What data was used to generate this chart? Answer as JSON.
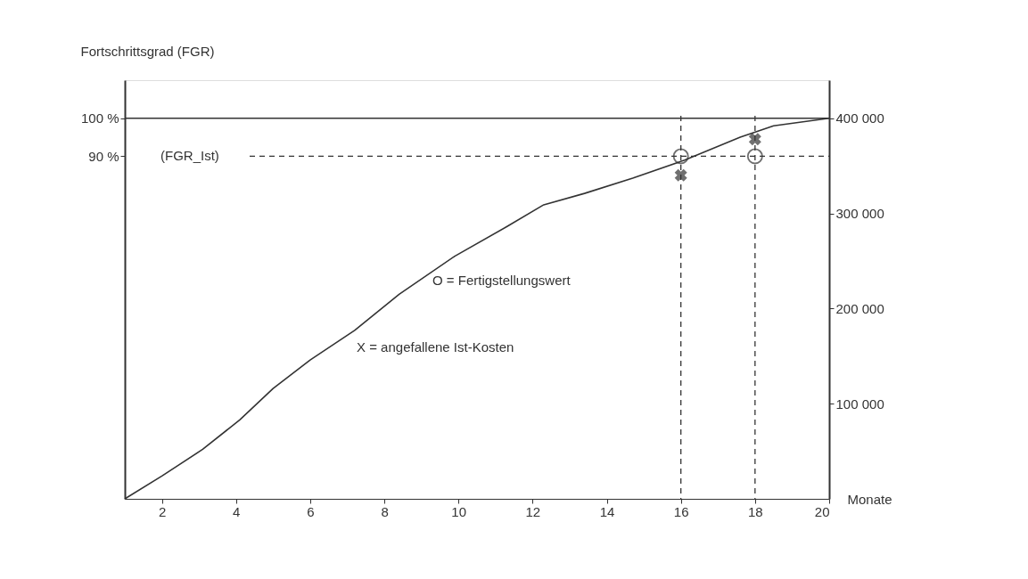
{
  "chart_data": {
    "type": "line",
    "xlabel": "Monate",
    "ylabel": "Fortschrittsgrad (FGR)",
    "xlim": [
      1,
      20
    ],
    "xticks": [
      2,
      4,
      6,
      8,
      10,
      12,
      14,
      16,
      18,
      20
    ],
    "ylim": [
      0,
      110
    ],
    "yticks": [
      {
        "value": 90,
        "label": "90 %"
      },
      {
        "value": 100,
        "label": "100 %"
      }
    ],
    "y2lim": [
      0,
      440000
    ],
    "y2ticks": [
      {
        "value": 100000,
        "label": "100 000"
      },
      {
        "value": 200000,
        "label": "200 000"
      },
      {
        "value": 300000,
        "label": "300 000"
      },
      {
        "value": 400000,
        "label": "400 000"
      }
    ],
    "grid": false,
    "series": [
      {
        "axis": "y2",
        "color": "#333333",
        "marker": "none",
        "line_style": "solid",
        "x": [
          1,
          2,
          3.1,
          4.1,
          5,
          6,
          7.2,
          8.4,
          9.9,
          11.3,
          12.3,
          13.4,
          14.7,
          16.1,
          17.6,
          18.5,
          20
        ],
        "values": [
          0,
          24000,
          52000,
          83000,
          116000,
          146000,
          177000,
          215000,
          255000,
          286000,
          309000,
          321000,
          337000,
          356000,
          380000,
          392000,
          400000
        ]
      },
      {
        "type": "scatter",
        "color": "#333333",
        "marker": "circle",
        "x": [
          16,
          18
        ],
        "values": [
          90,
          90
        ]
      },
      {
        "type": "scatter",
        "axis": "y2",
        "color": "#333333",
        "marker": "cross",
        "x": [
          16,
          18
        ],
        "values": [
          340000,
          378000
        ]
      }
    ],
    "ref_lines": [
      {
        "axis": "y",
        "value": 100,
        "line_style": "solid"
      },
      {
        "axis": "y",
        "value": 90,
        "label": "(FGR_Ist)",
        "line_style": "dashed"
      },
      {
        "axis": "x",
        "value": 16,
        "line_style": "dashed"
      },
      {
        "axis": "x",
        "value": 18,
        "line_style": "dashed"
      }
    ],
    "annotations": [
      "O = Fertigstellungswert",
      "X = angefallene Ist-Kosten"
    ]
  }
}
